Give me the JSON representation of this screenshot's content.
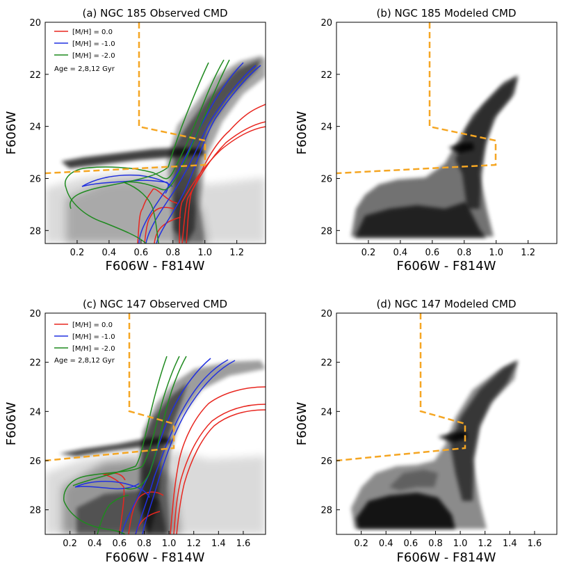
{
  "figure": {
    "panels": [
      {
        "id": "a",
        "title": "(a) NGC 185 Observed CMD",
        "xlabel": "F606W - F814W",
        "ylabel": "F606W",
        "xticks": [
          "0.2",
          "0.4",
          "0.6",
          "0.8",
          "1.0",
          "1.2"
        ],
        "yticks": [
          "20",
          "22",
          "24",
          "26",
          "28"
        ],
        "has_isochrones": true
      },
      {
        "id": "b",
        "title": "(b) NGC 185 Modeled CMD",
        "xlabel": "F606W - F814W",
        "ylabel": "F606W",
        "xticks": [
          "0.2",
          "0.4",
          "0.6",
          "0.8",
          "1.0",
          "1.2"
        ],
        "yticks": [
          "20",
          "22",
          "24",
          "26",
          "28"
        ],
        "has_isochrones": false
      },
      {
        "id": "c",
        "title": "(c) NGC 147 Observed CMD",
        "xlabel": "F606W - F814W",
        "ylabel": "F606W",
        "xticks": [
          "0.2",
          "0.4",
          "0.6",
          "0.8",
          "1.0",
          "1.2",
          "1.4",
          "1.6"
        ],
        "yticks": [
          "20",
          "22",
          "24",
          "26",
          "28"
        ],
        "has_isochrones": true
      },
      {
        "id": "d",
        "title": "(d) NGC 147 Modeled CMD",
        "xlabel": "F606W - F814W",
        "ylabel": "F606W",
        "xticks": [
          "0.2",
          "0.4",
          "0.6",
          "0.8",
          "1.0",
          "1.2",
          "1.4",
          "1.6"
        ],
        "yticks": [
          "20",
          "22",
          "24",
          "26",
          "28"
        ],
        "has_isochrones": false
      }
    ],
    "legend": {
      "entries": [
        {
          "label": "[M/H] = 0.0",
          "color": "#e8261f"
        },
        {
          "label": "[M/H] = -1.0",
          "color": "#2130e0"
        },
        {
          "label": "[M/H] = -2.0",
          "color": "#1f8a1f"
        }
      ],
      "note": "Age = 2,8,12 Gyr"
    },
    "colors": {
      "selection_box": "#f5a623",
      "isochrone_red": "#e8261f",
      "isochrone_blue": "#2130e0",
      "isochrone_green": "#1f8a1f",
      "density": "#000000"
    }
  },
  "chart_data": [
    {
      "type": "heatmap",
      "panel": "a",
      "title": "(a) NGC 185 Observed CMD",
      "xlabel": "F606W - F814W",
      "ylabel": "F606W",
      "xlim": [
        0.0,
        1.38
      ],
      "ylim": [
        28.5,
        20.0
      ],
      "selection_box": {
        "x": [
          0.6,
          0.6,
          1.0,
          1.0,
          0.0
        ],
        "y": [
          20.0,
          24.0,
          24.5,
          25.5,
          25.8
        ]
      },
      "isochrones": [
        {
          "metallicity": "[M/H] = 0.0",
          "ages_gyr": [
            2,
            8,
            12
          ]
        },
        {
          "metallicity": "[M/H] = -1.0",
          "ages_gyr": [
            2,
            8,
            12
          ]
        },
        {
          "metallicity": "[M/H] = -2.0",
          "ages_gyr": [
            2,
            8,
            12
          ]
        }
      ]
    },
    {
      "type": "heatmap",
      "panel": "b",
      "title": "(b) NGC 185 Modeled CMD",
      "xlabel": "F606W - F814W",
      "ylabel": "F606W",
      "xlim": [
        0.0,
        1.38
      ],
      "ylim": [
        28.5,
        20.0
      ],
      "selection_box": {
        "x": [
          0.6,
          0.6,
          1.0,
          1.0,
          0.0
        ],
        "y": [
          20.0,
          24.0,
          24.5,
          25.5,
          25.8
        ]
      }
    },
    {
      "type": "heatmap",
      "panel": "c",
      "title": "(c) NGC 147 Observed CMD",
      "xlabel": "F606W - F814W",
      "ylabel": "F606W",
      "xlim": [
        0.0,
        1.78
      ],
      "ylim": [
        29.0,
        20.0
      ],
      "selection_box": {
        "x": [
          0.6,
          0.6,
          1.05,
          1.05,
          0.0
        ],
        "y": [
          20.0,
          24.0,
          24.5,
          25.5,
          25.9
        ]
      },
      "isochrones": [
        {
          "metallicity": "[M/H] = 0.0",
          "ages_gyr": [
            2,
            8,
            12
          ]
        },
        {
          "metallicity": "[M/H] = -1.0",
          "ages_gyr": [
            2,
            8,
            12
          ]
        },
        {
          "metallicity": "[M/H] = -2.0",
          "ages_gyr": [
            2,
            8,
            12
          ]
        }
      ]
    },
    {
      "type": "heatmap",
      "panel": "d",
      "title": "(d) NGC 147 Modeled CMD",
      "xlabel": "F606W - F814W",
      "ylabel": "F606W",
      "xlim": [
        0.0,
        1.78
      ],
      "ylim": [
        29.0,
        20.0
      ],
      "selection_box": {
        "x": [
          0.6,
          0.6,
          1.05,
          1.05,
          0.0
        ],
        "y": [
          20.0,
          24.0,
          24.5,
          25.5,
          25.9
        ]
      }
    }
  ]
}
